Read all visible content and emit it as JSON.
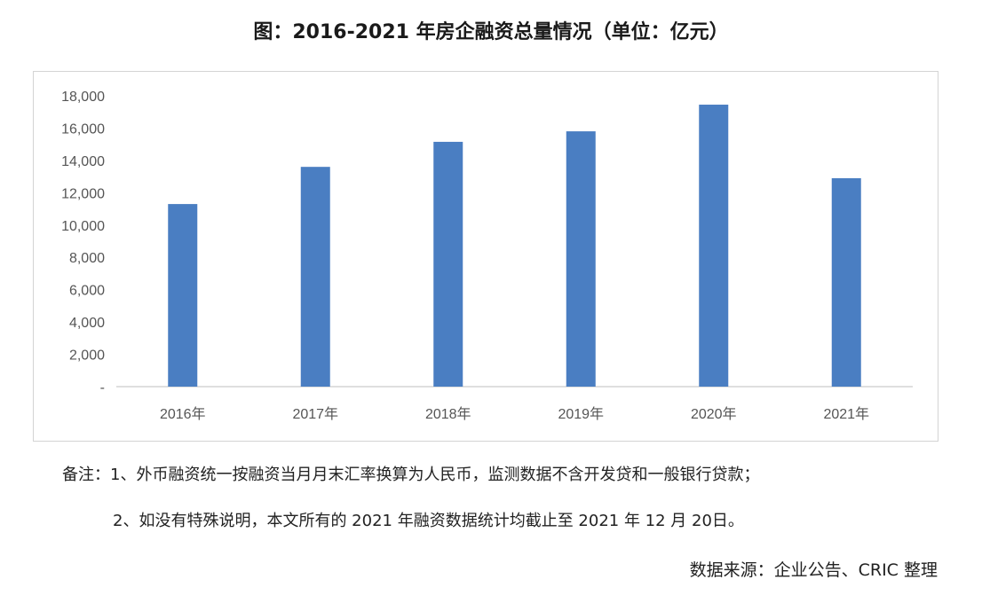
{
  "title": "图：2016-2021 年房企融资总量情况（单位：亿元）",
  "notes": {
    "line1": "备注：1、外币融资统一按融资当月月末汇率换算为人民币，监测数据不含开发贷和一般银行贷款；",
    "line2": "2、如没有特殊说明，本文所有的 2021 年融资数据统计均截止至 2021 年 12 月 20日。"
  },
  "source": "数据来源：企业公告、CRIC 整理",
  "chart_data": {
    "type": "bar",
    "title": "图：2016-2021 年房企融资总量情况（单位：亿元）",
    "categories": [
      "2016年",
      "2017年",
      "2018年",
      "2019年",
      "2020年",
      "2021年"
    ],
    "values": [
      11300,
      13600,
      15150,
      15800,
      17450,
      12900
    ],
    "ylim": [
      0,
      18000
    ],
    "y_ticks": [
      0,
      2000,
      4000,
      6000,
      8000,
      10000,
      12000,
      14000,
      16000,
      18000
    ],
    "y_tick_labels": [
      "-",
      "2,000",
      "4,000",
      "6,000",
      "8,000",
      "10,000",
      "12,000",
      "14,000",
      "16,000",
      "18,000"
    ],
    "bar_color": "#4a7ec2",
    "grid": false,
    "legend": "none"
  }
}
